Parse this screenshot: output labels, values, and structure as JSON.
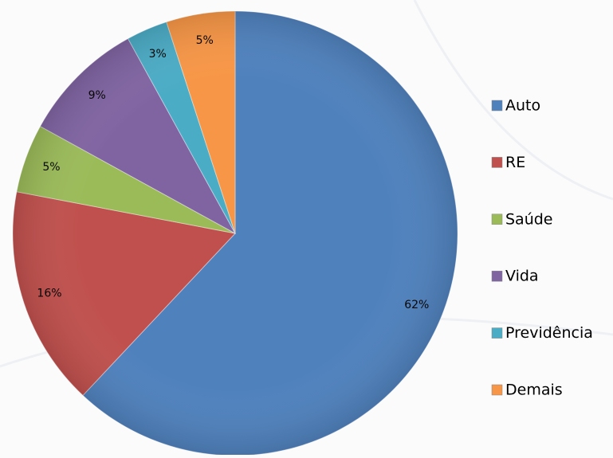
{
  "chart_data": {
    "type": "pie",
    "categories": [
      "Auto",
      "RE",
      "Saúde",
      "Vida",
      "Previdência",
      "Demais"
    ],
    "values": [
      62,
      16,
      5,
      9,
      3,
      5
    ],
    "value_labels": [
      "62%",
      "16%",
      "5%",
      "9%",
      "3%",
      "5%"
    ],
    "colors": [
      "#4f81bd",
      "#c0504d",
      "#9bbb59",
      "#8064a2",
      "#4bacc6",
      "#f79646"
    ],
    "legend": "right"
  }
}
